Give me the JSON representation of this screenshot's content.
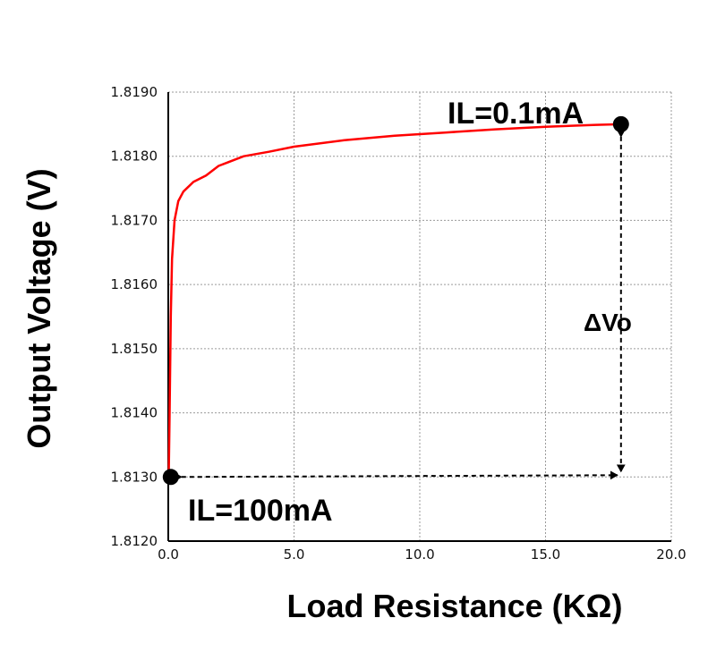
{
  "chart_data": {
    "type": "line",
    "title": "",
    "xlabel": "Load Resistance (KΩ)",
    "ylabel": "Output Voltage (V)",
    "xlim": [
      0.0,
      20.0
    ],
    "ylim": [
      1.812,
      1.819
    ],
    "x_ticks": [
      "0.0",
      "5.0",
      "10.0",
      "15.0",
      "20.0"
    ],
    "y_ticks": [
      "1.8120",
      "1.8130",
      "1.8140",
      "1.8150",
      "1.8160",
      "1.8170",
      "1.8180",
      "1.8190"
    ],
    "grid": true,
    "series": [
      {
        "color": "#ff0000",
        "points": [
          [
            0.018,
            1.813
          ],
          [
            0.05,
            1.8139
          ],
          [
            0.1,
            1.8155
          ],
          [
            0.15,
            1.8164
          ],
          [
            0.25,
            1.817
          ],
          [
            0.4,
            1.8173
          ],
          [
            0.6,
            1.81745
          ],
          [
            1.0,
            1.8176
          ],
          [
            1.5,
            1.8177
          ],
          [
            2.0,
            1.81785
          ],
          [
            3.0,
            1.818
          ],
          [
            4.0,
            1.81807
          ],
          [
            5.0,
            1.81815
          ],
          [
            7.0,
            1.81825
          ],
          [
            9.0,
            1.81832
          ],
          [
            11.0,
            1.81837
          ],
          [
            13.0,
            1.81842
          ],
          [
            15.0,
            1.81846
          ],
          [
            17.0,
            1.81849
          ],
          [
            18.0,
            1.8185
          ]
        ]
      }
    ],
    "markers": [
      {
        "x": 0.1,
        "y": 1.813,
        "label": "IL=100mA"
      },
      {
        "x": 18.0,
        "y": 1.8185,
        "label": "IL=0.1mA"
      }
    ],
    "annotations": [
      {
        "text": "ΔVo"
      }
    ]
  }
}
